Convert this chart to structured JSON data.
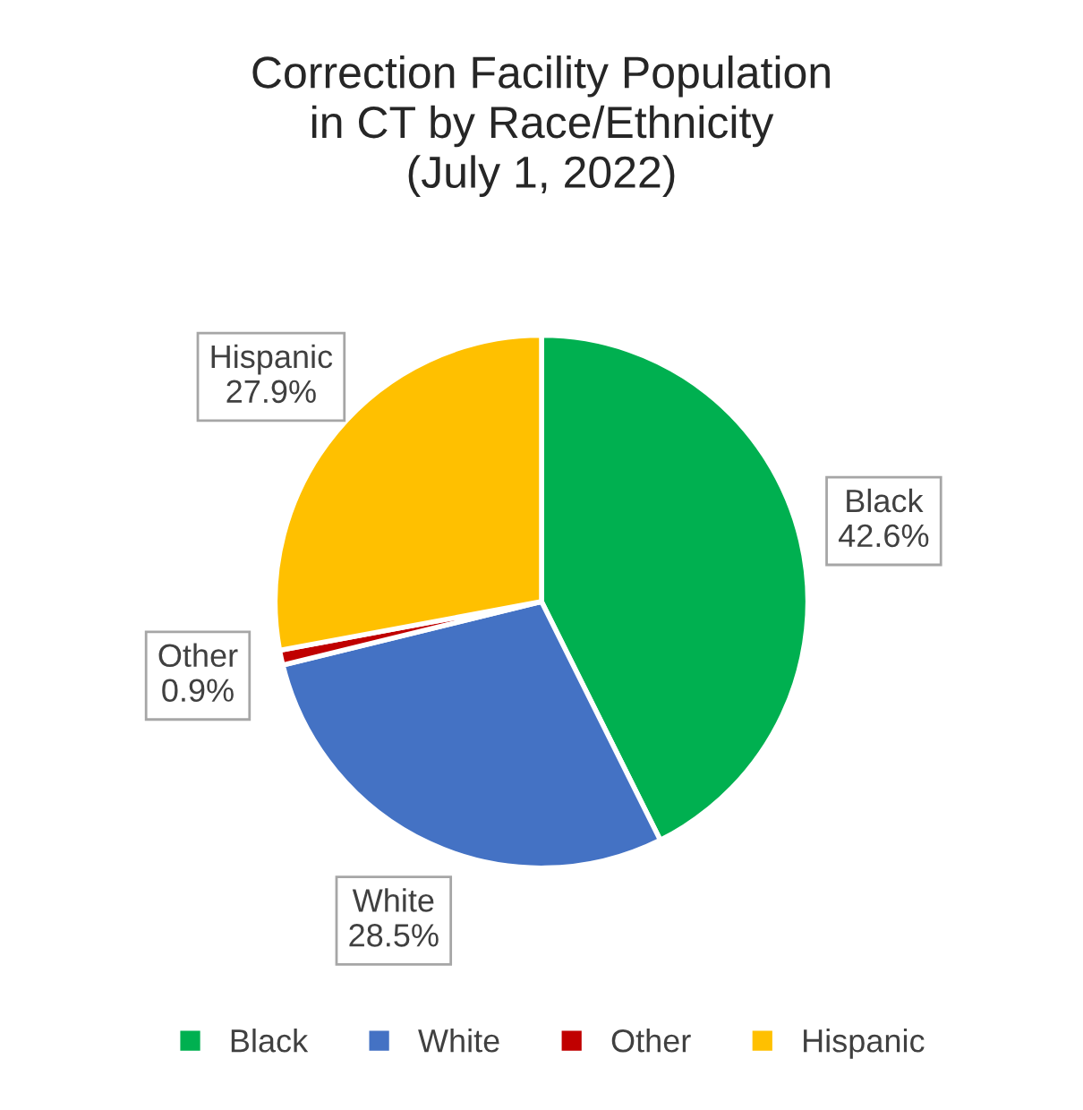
{
  "chart_data": {
    "type": "pie",
    "title": "Correction Facility Population\nin CT by Race/Ethnicity\n(July 1, 2022)",
    "categories": [
      "Black",
      "White",
      "Other",
      "Hispanic"
    ],
    "values": [
      42.6,
      28.5,
      0.9,
      27.9
    ],
    "value_labels": [
      "42.6%",
      "28.5%",
      "0.9%",
      "27.9%"
    ],
    "colors": [
      "#00b050",
      "#4472c4",
      "#c00000",
      "#ffc000"
    ],
    "legend": "bottom"
  }
}
